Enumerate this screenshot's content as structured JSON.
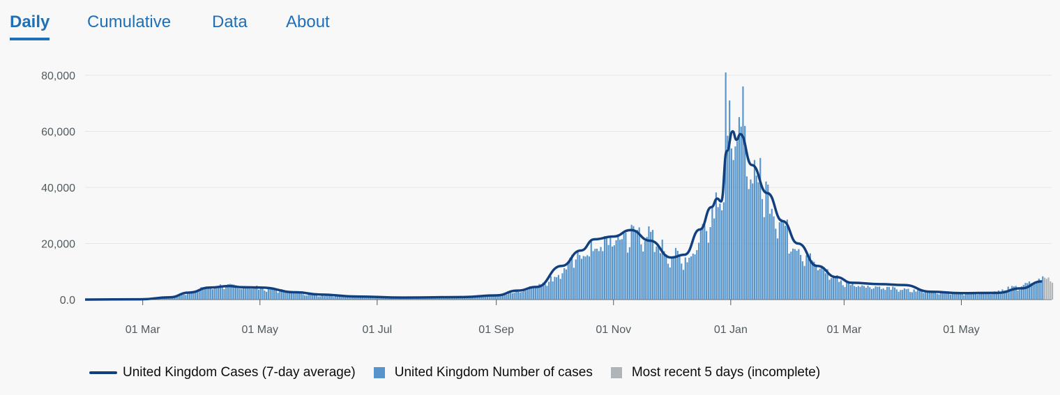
{
  "tabs": [
    {
      "label": "Daily",
      "active": true
    },
    {
      "label": "Cumulative",
      "active": false
    },
    {
      "label": "Data",
      "active": false
    },
    {
      "label": "About",
      "active": false
    }
  ],
  "colors": {
    "bar": "#5694ca",
    "incomplete": "#b1b4b6",
    "line": "#12407f",
    "grid": "#e6e6e6",
    "axis": "#505a5f",
    "tab": "#1d70b8"
  },
  "legend": {
    "line_label": "United Kingdom Cases (7-day average)",
    "bar_label": "United Kingdom Number of cases",
    "incomplete_label": "Most recent 5 days (incomplete)"
  },
  "chart_data": {
    "type": "bar",
    "x_axis": {
      "type": "date",
      "range": [
        "2020-01-31",
        "2021-06-17"
      ],
      "tick_labels": [
        "01 Mar",
        "01 May",
        "01 Jul",
        "01 Sep",
        "01 Nov",
        "01 Jan",
        "01 Mar",
        "01 May"
      ],
      "tick_dates": [
        "2020-03-01",
        "2020-05-01",
        "2020-07-01",
        "2020-09-01",
        "2020-11-01",
        "2021-01-01",
        "2021-03-01",
        "2021-05-01"
      ]
    },
    "y_axis": {
      "range": [
        0,
        82000
      ],
      "tick_values": [
        0,
        20000,
        40000,
        60000,
        80000
      ],
      "tick_labels": [
        "0.0",
        "20,000",
        "40,000",
        "60,000",
        "80,000"
      ]
    },
    "grid": "horizontal",
    "legend_position": "bottom",
    "series": [
      {
        "name": "United Kingdom Number of cases",
        "kind": "bar",
        "color": "#5694ca",
        "daily_values_monthly_anchors": [
          [
            "2020-01-31",
            0
          ],
          [
            "2020-02-29",
            50
          ],
          [
            "2020-03-15",
            800
          ],
          [
            "2020-04-01",
            4000
          ],
          [
            "2020-04-10",
            5000
          ],
          [
            "2020-05-01",
            4200
          ],
          [
            "2020-06-01",
            1500
          ],
          [
            "2020-07-01",
            700
          ],
          [
            "2020-08-01",
            900
          ],
          [
            "2020-09-01",
            1500
          ],
          [
            "2020-09-15",
            3500
          ],
          [
            "2020-10-01",
            8000
          ],
          [
            "2020-10-15",
            17000
          ],
          [
            "2020-11-01",
            22000
          ],
          [
            "2020-11-15",
            25000
          ],
          [
            "2020-12-01",
            16000
          ],
          [
            "2020-12-10",
            15000
          ],
          [
            "2020-12-20",
            30000
          ],
          [
            "2020-12-29",
            45000
          ],
          [
            "2021-01-01",
            61000
          ],
          [
            "2021-01-05",
            58000
          ],
          [
            "2021-01-15",
            45000
          ],
          [
            "2021-02-01",
            22000
          ],
          [
            "2021-02-15",
            12000
          ],
          [
            "2021-03-01",
            6000
          ],
          [
            "2021-04-01",
            3500
          ],
          [
            "2021-05-01",
            2200
          ],
          [
            "2021-05-15",
            2500
          ],
          [
            "2021-06-01",
            5000
          ],
          [
            "2021-06-12",
            7500
          ]
        ],
        "peak": {
          "date": "2020-12-29",
          "value": 81000
        }
      },
      {
        "name": "Most recent 5 days (incomplete)",
        "kind": "bar",
        "color": "#b1b4b6",
        "values": [
          {
            "date": "2021-06-13",
            "value": 7800
          },
          {
            "date": "2021-06-14",
            "value": 7400
          },
          {
            "date": "2021-06-15",
            "value": 7900
          },
          {
            "date": "2021-06-16",
            "value": 6500
          },
          {
            "date": "2021-06-17",
            "value": 6000
          }
        ]
      },
      {
        "name": "United Kingdom Cases (7-day average)",
        "kind": "line",
        "color": "#12407f",
        "points": [
          [
            "2020-01-31",
            0
          ],
          [
            "2020-02-29",
            100
          ],
          [
            "2020-03-15",
            800
          ],
          [
            "2020-03-25",
            2500
          ],
          [
            "2020-04-05",
            4300
          ],
          [
            "2020-04-15",
            4800
          ],
          [
            "2020-04-22",
            4400
          ],
          [
            "2020-05-01",
            4300
          ],
          [
            "2020-05-20",
            2600
          ],
          [
            "2020-06-01",
            1800
          ],
          [
            "2020-06-20",
            1100
          ],
          [
            "2020-07-15",
            700
          ],
          [
            "2020-08-15",
            900
          ],
          [
            "2020-09-01",
            1500
          ],
          [
            "2020-09-12",
            3200
          ],
          [
            "2020-09-22",
            4500
          ],
          [
            "2020-10-05",
            12000
          ],
          [
            "2020-10-15",
            17500
          ],
          [
            "2020-10-22",
            21500
          ],
          [
            "2020-11-01",
            22500
          ],
          [
            "2020-11-10",
            24800
          ],
          [
            "2020-11-20",
            21000
          ],
          [
            "2020-12-01",
            15000
          ],
          [
            "2020-12-08",
            16000
          ],
          [
            "2020-12-16",
            25000
          ],
          [
            "2020-12-22",
            33000
          ],
          [
            "2020-12-25",
            36000
          ],
          [
            "2020-12-27",
            35000
          ],
          [
            "2020-12-30",
            53000
          ],
          [
            "2021-01-02",
            60000
          ],
          [
            "2021-01-04",
            57000
          ],
          [
            "2021-01-06",
            59000
          ],
          [
            "2021-01-12",
            48000
          ],
          [
            "2021-01-20",
            38000
          ],
          [
            "2021-01-28",
            28000
          ],
          [
            "2021-02-05",
            20000
          ],
          [
            "2021-02-15",
            12000
          ],
          [
            "2021-02-25",
            8000
          ],
          [
            "2021-03-05",
            6000
          ],
          [
            "2021-03-20",
            5500
          ],
          [
            "2021-04-01",
            5200
          ],
          [
            "2021-04-15",
            2800
          ],
          [
            "2021-05-01",
            2300
          ],
          [
            "2021-05-20",
            2400
          ],
          [
            "2021-06-01",
            4000
          ],
          [
            "2021-06-12",
            6500
          ]
        ]
      }
    ]
  }
}
